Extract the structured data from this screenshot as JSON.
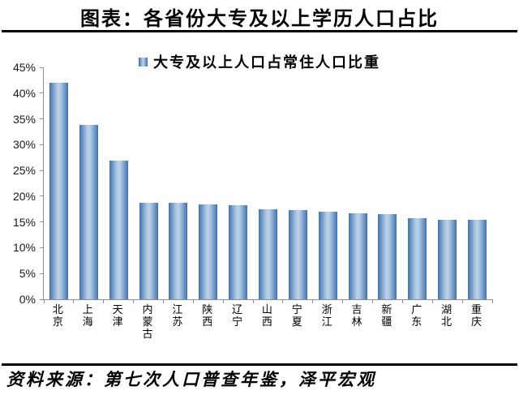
{
  "title": "图表：各省份大专及以上学历人口占比",
  "source": "资料来源：第七次人口普查年鉴，泽平宏观",
  "colors": {
    "bar_edge": "#44709f",
    "bar_mid": "#5585bc",
    "bar_center": "#bad0e8",
    "axis": "#8e8e8e",
    "rule": "#000000",
    "text": "#000000"
  },
  "chart_data": {
    "type": "bar",
    "title": "图表：各省份大专及以上学历人口占比",
    "legend": "大专及以上人口占常住人口比重",
    "legend_position": "top-center",
    "categories": [
      "北京",
      "上海",
      "天津",
      "内蒙古",
      "江苏",
      "陕西",
      "辽宁",
      "山西",
      "宁夏",
      "浙江",
      "吉林",
      "新疆",
      "广东",
      "湖北",
      "重庆"
    ],
    "values": [
      42.0,
      33.9,
      26.9,
      18.7,
      18.7,
      18.4,
      18.2,
      17.4,
      17.3,
      17.0,
      16.7,
      16.5,
      15.7,
      15.5,
      15.4
    ],
    "unit": "%",
    "xlabel": "",
    "ylabel": "",
    "ylim": [
      0,
      45
    ],
    "ytick_step": 5,
    "ytick_labels": [
      "0%",
      "5%",
      "10%",
      "15%",
      "20%",
      "25%",
      "30%",
      "35%",
      "40%",
      "45%"
    ],
    "grid": false
  }
}
